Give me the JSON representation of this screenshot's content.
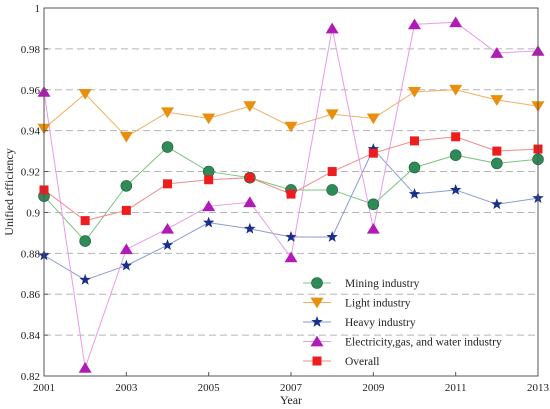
{
  "chart_data": {
    "type": "line",
    "title": "",
    "xlabel": "Year",
    "ylabel": "Unified efficiency",
    "xlim": [
      2001,
      2013
    ],
    "ylim": [
      0.82,
      1.0
    ],
    "xticks": [
      2001,
      2003,
      2005,
      2007,
      2009,
      2011,
      2013
    ],
    "xtick_labels": [
      "2001",
      "2003",
      "2005",
      "2007",
      "2009",
      "2011",
      "2013"
    ],
    "yticks": [
      0.82,
      0.84,
      0.86,
      0.88,
      0.9,
      0.92,
      0.94,
      0.96,
      0.98,
      1.0
    ],
    "ytick_labels": [
      "0.82",
      "0.84",
      "0.86",
      "0.88",
      "0.9",
      "0.92",
      "0.94",
      "0.96",
      "0.98",
      "1"
    ],
    "grid": "horizontal dashed",
    "legend_position": "bottom-right",
    "x": [
      2001,
      2002,
      2003,
      2004,
      2005,
      2006,
      2007,
      2008,
      2009,
      2010,
      2011,
      2012,
      2013
    ],
    "series": [
      {
        "name": "Mining industry",
        "marker": "circle",
        "color": "#2e8b57",
        "line_color": "#7cc47c",
        "values": [
          0.908,
          0.886,
          0.913,
          0.932,
          0.92,
          0.917,
          0.911,
          0.911,
          0.904,
          0.922,
          0.928,
          0.924,
          0.926
        ]
      },
      {
        "name": "Light industry",
        "marker": "triangle-down",
        "color": "#e8900c",
        "line_color": "#f0b060",
        "values": [
          0.941,
          0.958,
          0.937,
          0.949,
          0.946,
          0.952,
          0.942,
          0.948,
          0.946,
          0.959,
          0.96,
          0.955,
          0.952
        ]
      },
      {
        "name": "Heavy industry",
        "marker": "star",
        "color": "#1a2f8a",
        "line_color": "#8a9ad8",
        "values": [
          0.879,
          0.867,
          0.874,
          0.884,
          0.895,
          0.892,
          0.888,
          0.888,
          0.931,
          0.909,
          0.911,
          0.904,
          0.907
        ]
      },
      {
        "name": "Electricity,gas, and water industry",
        "marker": "triangle-up",
        "color": "#b21ab8",
        "line_color": "#e89be8",
        "values": [
          0.959,
          0.824,
          0.882,
          0.892,
          0.903,
          0.905,
          0.878,
          0.99,
          0.892,
          0.992,
          0.993,
          0.978,
          0.979
        ]
      },
      {
        "name": "Overall",
        "marker": "square",
        "color": "#ee1c1c",
        "line_color": "#f08a8a",
        "values": [
          0.911,
          0.896,
          0.901,
          0.914,
          0.916,
          0.917,
          0.909,
          0.92,
          0.929,
          0.935,
          0.937,
          0.93,
          0.931
        ]
      }
    ]
  }
}
